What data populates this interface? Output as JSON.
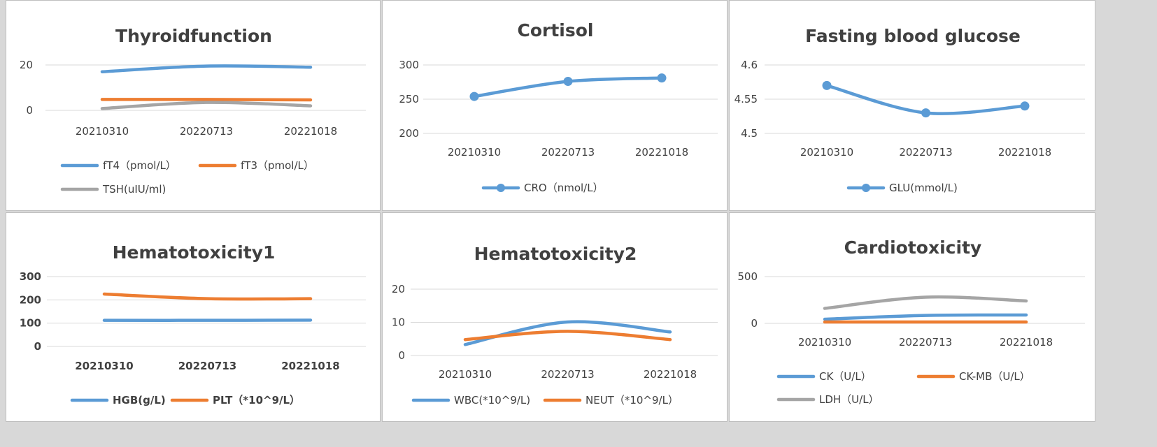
{
  "chart_data": [
    {
      "type": "line",
      "title": "Thyroidfunction",
      "categories": [
        "20210310",
        "20220713",
        "20221018"
      ],
      "ylim": [
        0,
        20
      ],
      "yticks": [
        0,
        20
      ],
      "markers": false,
      "series": [
        {
          "name": "fT4（pmol/L）",
          "values": [
            17,
            19.5,
            19
          ],
          "color": "#5b9bd5"
        },
        {
          "name": "fT3（pmol/L）",
          "values": [
            4.8,
            4.8,
            4.6
          ],
          "color": "#ed7d31"
        },
        {
          "name": "TSH(uIU/ml)",
          "values": [
            0.8,
            3.5,
            2
          ],
          "color": "#a5a5a5"
        }
      ]
    },
    {
      "type": "line",
      "title": "Cortisol",
      "categories": [
        "20210310",
        "20220713",
        "20221018"
      ],
      "ylim": [
        200,
        300
      ],
      "yticks": [
        200,
        250,
        300
      ],
      "markers": true,
      "series": [
        {
          "name": "CRO（nmol/L）",
          "values": [
            254,
            276,
            281
          ],
          "color": "#5b9bd5"
        }
      ]
    },
    {
      "type": "line",
      "title": "Fasting blood glucose",
      "categories": [
        "20210310",
        "20220713",
        "20221018"
      ],
      "ylim": [
        4.5,
        4.6
      ],
      "yticks": [
        "4.5",
        "4.55",
        "4.6"
      ],
      "markers": true,
      "series": [
        {
          "name": "GLU(mmol/L)",
          "values": [
            4.57,
            4.53,
            4.54
          ],
          "color": "#5b9bd5"
        }
      ]
    },
    {
      "type": "line",
      "title": "Hematotoxicity1",
      "categories": [
        "20210310",
        "20220713",
        "20221018"
      ],
      "ylim": [
        0,
        300
      ],
      "yticks": [
        0,
        100,
        200,
        300
      ],
      "markers": false,
      "series": [
        {
          "name": "HGB(g/L)",
          "values": [
            112,
            112,
            113
          ],
          "color": "#5b9bd5"
        },
        {
          "name": "PLT（*10^9/L）",
          "values": [
            225,
            205,
            205
          ],
          "color": "#ed7d31"
        }
      ]
    },
    {
      "type": "line",
      "title": "Hematotoxicity2",
      "categories": [
        "20210310",
        "20220713",
        "20221018"
      ],
      "ylim": [
        0,
        20
      ],
      "yticks": [
        0,
        10,
        20
      ],
      "markers": false,
      "series": [
        {
          "name": "WBC(*10^9/L)",
          "values": [
            3.3,
            10.1,
            7.1
          ],
          "color": "#5b9bd5"
        },
        {
          "name": "NEUT（*10^9/L）",
          "values": [
            4.8,
            7.3,
            4.8
          ],
          "color": "#ed7d31"
        }
      ]
    },
    {
      "type": "line",
      "title": "Cardiotoxicity",
      "categories": [
        "20210310",
        "20220713",
        "20221018"
      ],
      "ylim": [
        0,
        500
      ],
      "yticks": [
        0,
        500
      ],
      "markers": false,
      "series": [
        {
          "name": "CK（U/L）",
          "values": [
            45,
            85,
            90
          ],
          "color": "#5b9bd5"
        },
        {
          "name": "CK-MB（U/L）",
          "values": [
            15,
            15,
            15
          ],
          "color": "#ed7d31"
        },
        {
          "name": "LDH（U/L）",
          "values": [
            160,
            280,
            240
          ],
          "color": "#a5a5a5"
        }
      ]
    }
  ]
}
